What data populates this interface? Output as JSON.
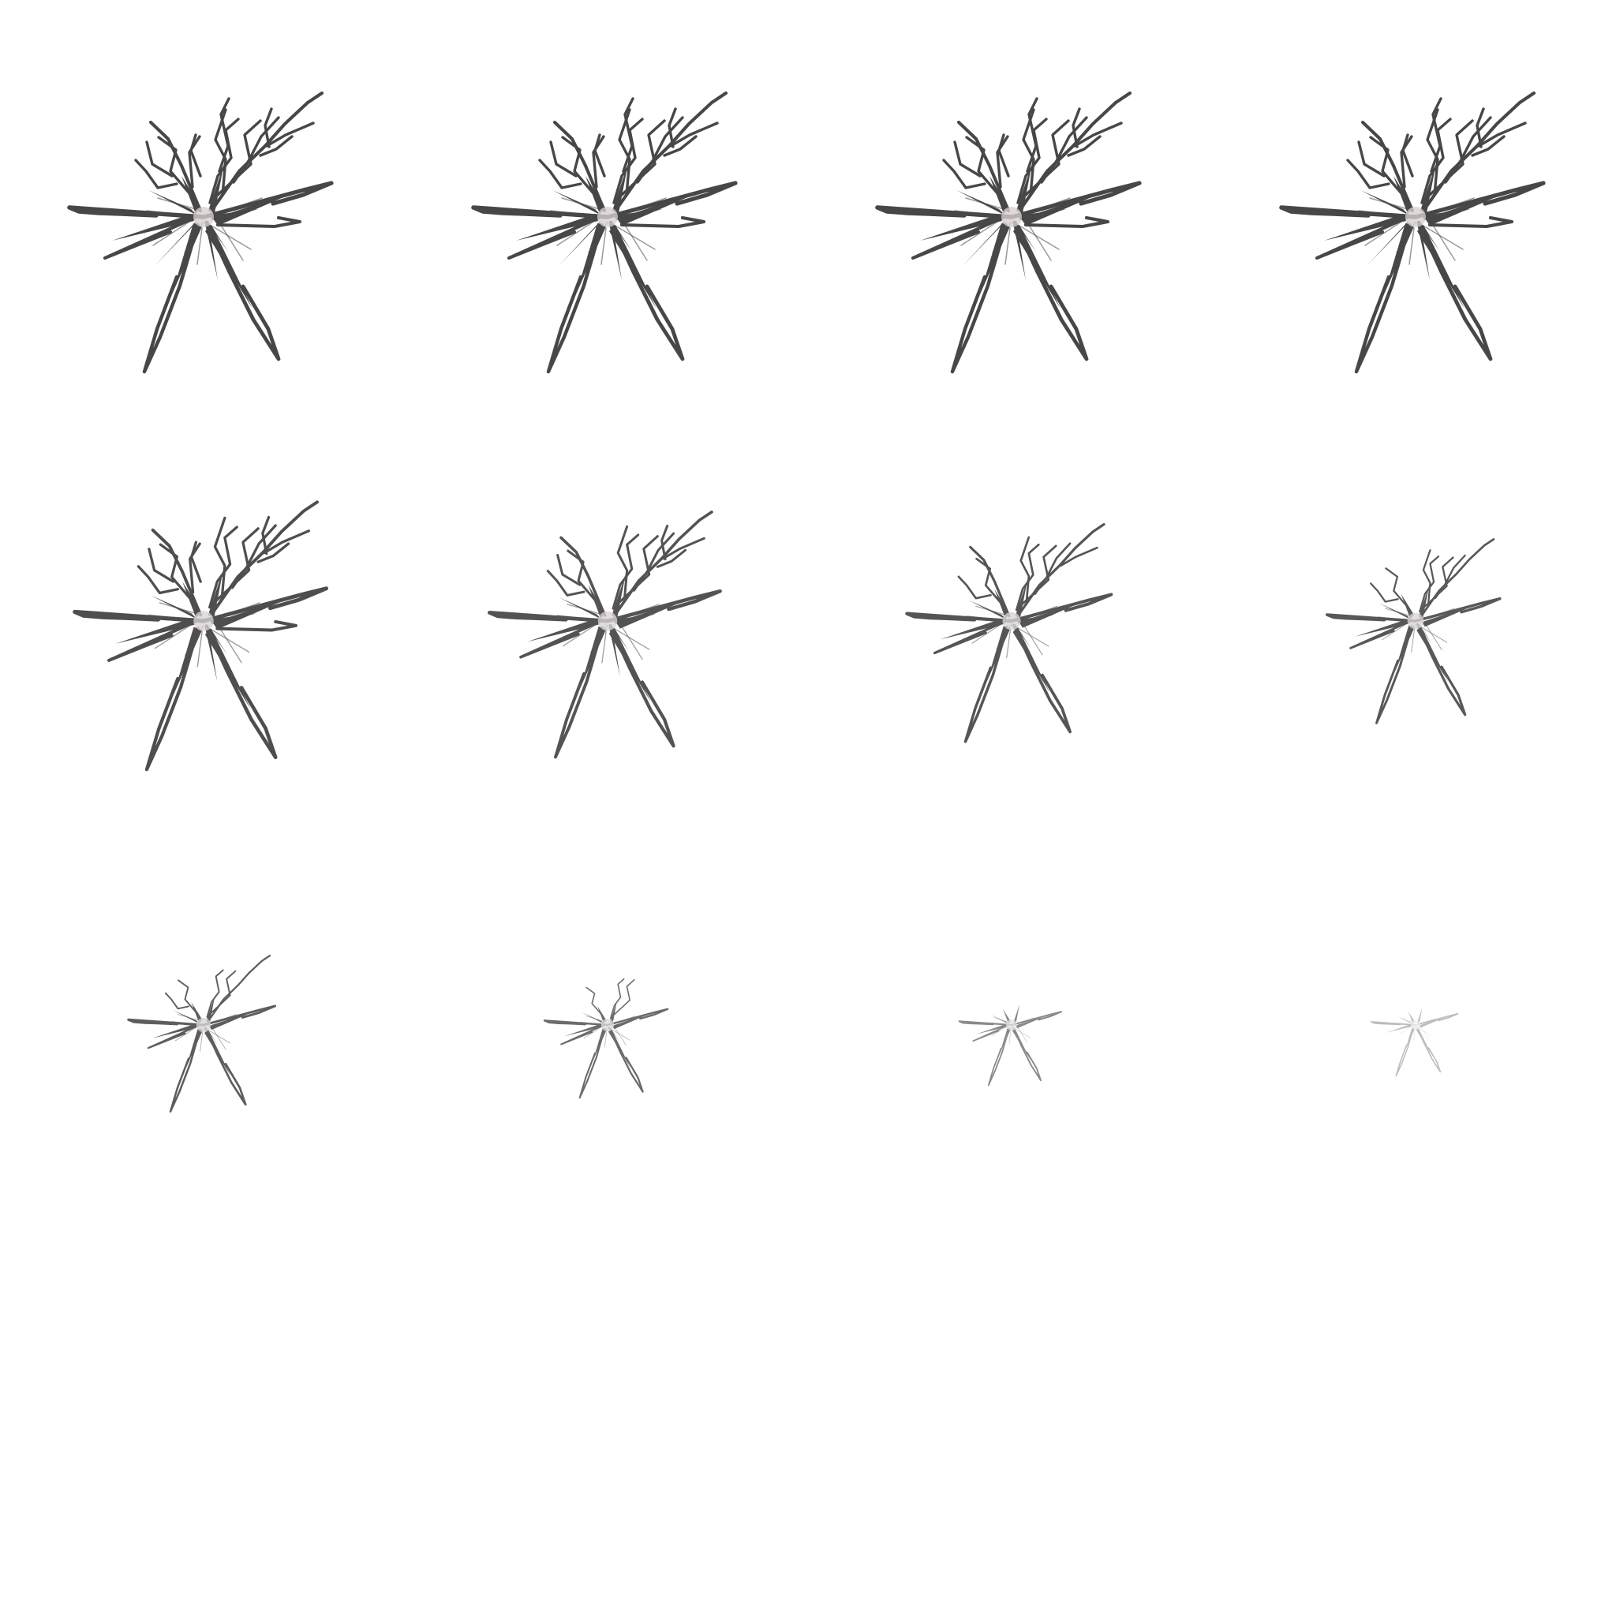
{
  "sprite_sheet": {
    "kind": "crack-effect-animation",
    "columns": 4,
    "rows": 4,
    "frame_count": 12,
    "empty_cell_count": 4,
    "background_color": "#ffffff",
    "crack_color": "#474747",
    "highlight_color": "#d7d1cf",
    "frames": [
      {
        "index": 1,
        "scale": 1.0,
        "opacity": 1.0,
        "arms": 8,
        "branch_detail": 1.0
      },
      {
        "index": 2,
        "scale": 1.0,
        "opacity": 1.0,
        "arms": 8,
        "branch_detail": 1.0
      },
      {
        "index": 3,
        "scale": 1.0,
        "opacity": 1.0,
        "arms": 8,
        "branch_detail": 1.0
      },
      {
        "index": 4,
        "scale": 1.0,
        "opacity": 1.0,
        "arms": 8,
        "branch_detail": 1.0
      },
      {
        "index": 5,
        "scale": 0.96,
        "opacity": 0.96,
        "arms": 8,
        "branch_detail": 0.9
      },
      {
        "index": 6,
        "scale": 0.88,
        "opacity": 0.93,
        "arms": 7,
        "branch_detail": 0.75
      },
      {
        "index": 7,
        "scale": 0.78,
        "opacity": 0.92,
        "arms": 7,
        "branch_detail": 0.55
      },
      {
        "index": 8,
        "scale": 0.66,
        "opacity": 0.9,
        "arms": 6,
        "branch_detail": 0.45
      },
      {
        "index": 9,
        "scale": 0.56,
        "opacity": 0.88,
        "arms": 6,
        "branch_detail": 0.32
      },
      {
        "index": 10,
        "scale": 0.47,
        "opacity": 0.8,
        "arms": 5,
        "branch_detail": 0.22
      },
      {
        "index": 11,
        "scale": 0.39,
        "opacity": 0.64,
        "arms": 5,
        "branch_detail": 0.12
      },
      {
        "index": 12,
        "scale": 0.33,
        "opacity": 0.36,
        "arms": 4,
        "branch_detail": 0.05
      }
    ]
  }
}
